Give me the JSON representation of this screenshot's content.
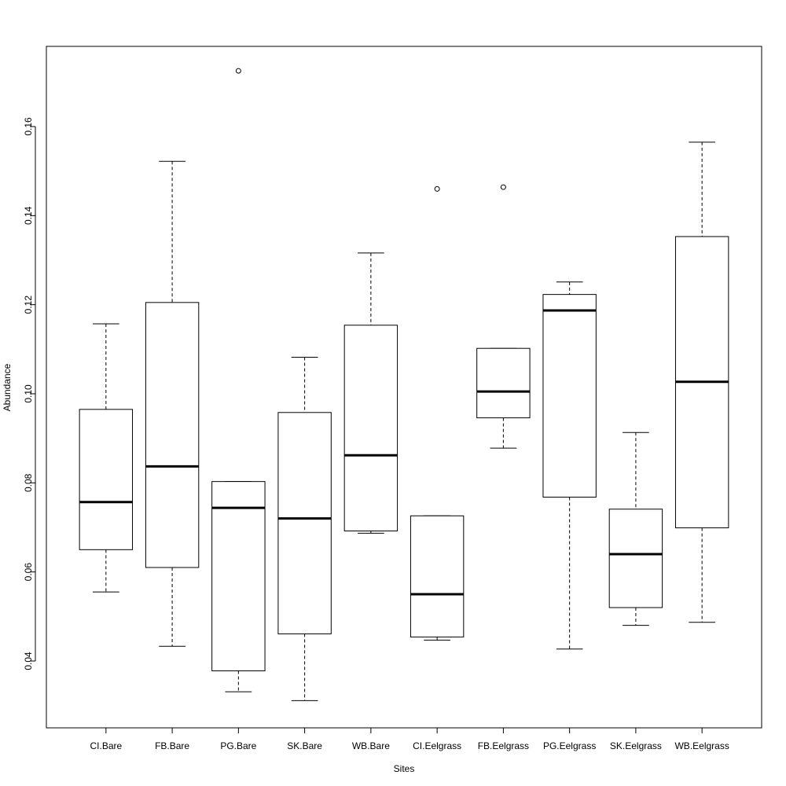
{
  "chart_data": {
    "type": "box",
    "xlabel": "Sites",
    "ylabel": "Abundance",
    "ylim": [
      0.025,
      0.178
    ],
    "yticks": [
      0.04,
      0.06,
      0.08,
      0.1,
      0.12,
      0.14,
      0.16
    ],
    "ytick_labels": [
      "0.04",
      "0.06",
      "0.08",
      "0.10",
      "0.12",
      "0.14",
      "0.16"
    ],
    "grid": false,
    "categories": [
      "CI.Bare",
      "FB.Bare",
      "PG.Bare",
      "SK.Bare",
      "WB.Bare",
      "CI.Eelgrass",
      "FB.Eelgrass",
      "PG.Eelgrass",
      "SK.Eelgrass",
      "WB.Eelgrass"
    ],
    "boxes": [
      {
        "whisker_low": 0.0555,
        "q1": 0.065,
        "median": 0.0757,
        "q3": 0.0965,
        "whisker_high": 0.1157,
        "outliers": []
      },
      {
        "whisker_low": 0.0433,
        "q1": 0.061,
        "median": 0.0837,
        "q3": 0.1205,
        "whisker_high": 0.1522,
        "outliers": []
      },
      {
        "whisker_low": 0.0331,
        "q1": 0.0378,
        "median": 0.0744,
        "q3": 0.0803,
        "whisker_high": 0.0803,
        "outliers": [
          0.1725
        ]
      },
      {
        "whisker_low": 0.0311,
        "q1": 0.0461,
        "median": 0.072,
        "q3": 0.0958,
        "whisker_high": 0.1082,
        "outliers": []
      },
      {
        "whisker_low": 0.0687,
        "q1": 0.0692,
        "median": 0.0862,
        "q3": 0.1154,
        "whisker_high": 0.1316,
        "outliers": []
      },
      {
        "whisker_low": 0.0447,
        "q1": 0.0454,
        "median": 0.055,
        "q3": 0.0726,
        "whisker_high": 0.0726,
        "outliers": [
          0.146
        ]
      },
      {
        "whisker_low": 0.0878,
        "q1": 0.0946,
        "median": 0.1005,
        "q3": 0.1102,
        "whisker_high": 0.1102,
        "outliers": [
          0.1464
        ]
      },
      {
        "whisker_low": 0.0427,
        "q1": 0.0768,
        "median": 0.1187,
        "q3": 0.1223,
        "whisker_high": 0.1251,
        "outliers": []
      },
      {
        "whisker_low": 0.048,
        "q1": 0.052,
        "median": 0.064,
        "q3": 0.0741,
        "whisker_high": 0.0913,
        "outliers": []
      },
      {
        "whisker_low": 0.0487,
        "q1": 0.0699,
        "median": 0.1027,
        "q3": 0.1353,
        "whisker_high": 0.1565,
        "outliers": []
      }
    ]
  }
}
